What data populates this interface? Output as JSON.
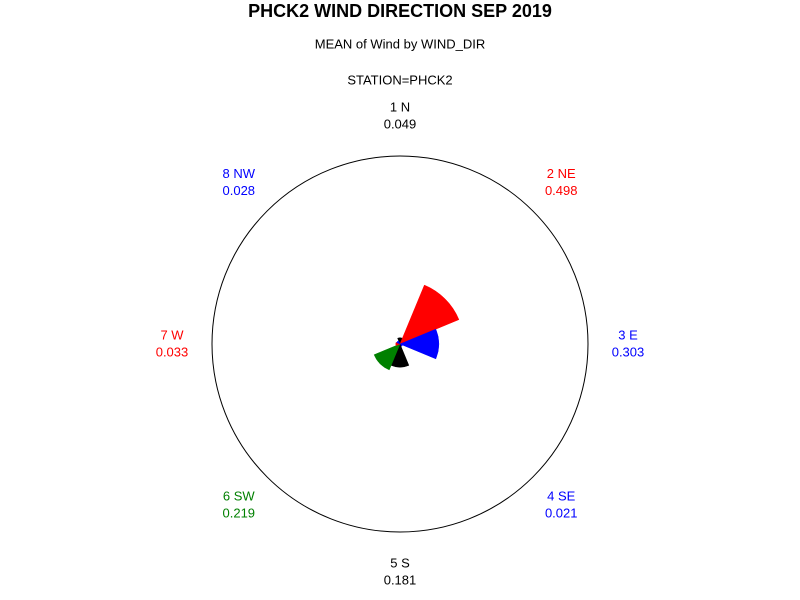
{
  "chart_data": {
    "type": "star",
    "title": "PHCK2 WIND DIRECTION SEP 2019",
    "subtitle": "MEAN of Wind by WIND_DIR",
    "station": "STATION=PHCK2",
    "categories": [
      "1 N",
      "2 NE",
      "3 E",
      "4 SE",
      "5 S",
      "6 SW",
      "7 W",
      "8 NW"
    ],
    "values": [
      0.049,
      0.498,
      0.303,
      0.021,
      0.181,
      0.219,
      0.033,
      0.028
    ],
    "colors": [
      "#000000",
      "#ff0000",
      "#0000ff",
      "#0000ff",
      "#000000",
      "#008000",
      "#ff0000",
      "#0000ff"
    ]
  }
}
